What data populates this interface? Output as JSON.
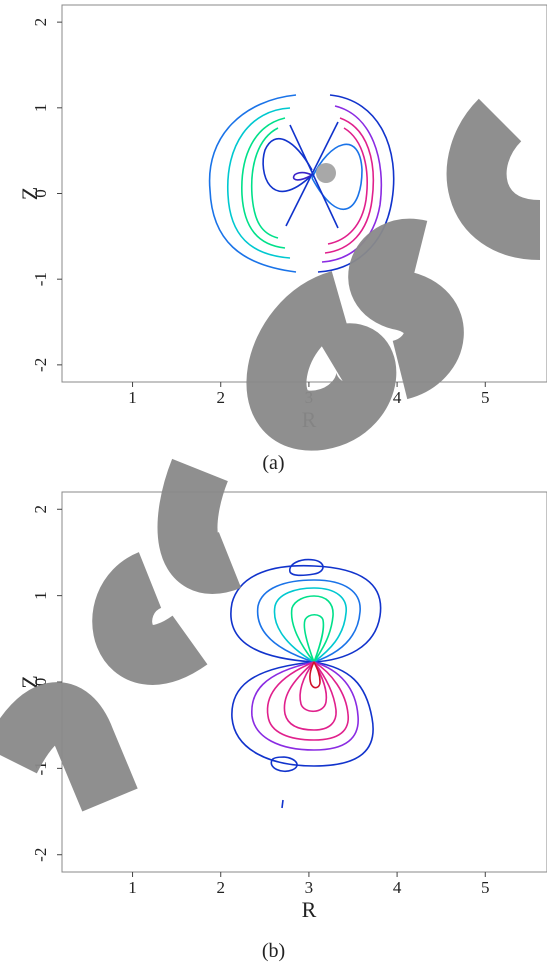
{
  "figure": {
    "panel_a": {
      "caption": "(a)"
    },
    "panel_b": {
      "caption": "(b)"
    }
  },
  "watermark": {
    "text": "manuscript",
    "color": "#7f7f7f"
  },
  "chart_data": [
    {
      "type": "contour",
      "xlabel": "R",
      "ylabel": "Z",
      "xlim": [
        0.2,
        5.7
      ],
      "ylim": [
        -2.2,
        2.2
      ],
      "xticks": [
        1,
        2,
        3,
        4,
        5
      ],
      "yticks": [
        2,
        1,
        0,
        -1,
        -2
      ],
      "tick_labels_x": [
        "1",
        "2",
        "3",
        "4",
        "5"
      ],
      "tick_labels_y": [
        "2",
        "1",
        "0",
        "-1",
        "-2"
      ],
      "colors": [
        "#1133cc",
        "#1a73e8",
        "#00c8d0",
        "#00e08a",
        "#e0208c",
        "#8a2be2"
      ],
      "features": {
        "outer_boundary_center": [
          3.0,
          0.2
        ],
        "outer_radius_R": 0.9,
        "outer_radius_Z": 1.0,
        "x_point": [
          3.0,
          0.25
        ],
        "filled_dot": [
          3.15,
          0.25
        ]
      }
    },
    {
      "type": "contour",
      "xlabel": "R",
      "ylabel": "Z",
      "xlim": [
        0.2,
        5.7
      ],
      "ylim": [
        -2.2,
        2.2
      ],
      "xticks": [
        1,
        2,
        3,
        4,
        5
      ],
      "yticks": [
        2,
        1,
        0,
        -1,
        -2
      ],
      "tick_labels_x": [
        "1",
        "2",
        "3",
        "4",
        "5"
      ],
      "tick_labels_y": [
        "2",
        "1",
        "0",
        "-1",
        "-2"
      ],
      "colors": [
        "#1133cc",
        "#1a73e8",
        "#00c8d0",
        "#00e08a",
        "#e0208c",
        "#8a2be2"
      ],
      "features": {
        "saddle_point": [
          3.0,
          0.25
        ],
        "upper_lobe_center": [
          2.98,
          0.8
        ],
        "lower_lobe_center": [
          2.98,
          -0.5
        ],
        "stray_mark": [
          2.62,
          -1.4
        ]
      }
    }
  ]
}
